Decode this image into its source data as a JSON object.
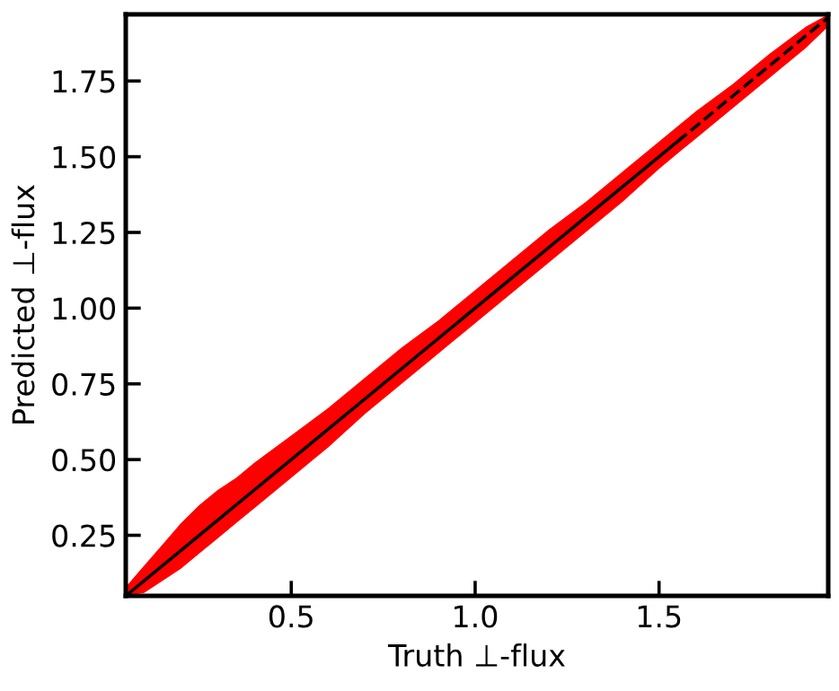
{
  "chart_data": {
    "type": "line",
    "xlabel": "Truth ⊥-flux",
    "ylabel": "Predicted ⊥-flux",
    "xlim": [
      0.05,
      1.96
    ],
    "ylim": [
      0.05,
      1.97
    ],
    "xticks": [
      0.5,
      {
        "value": 1.0,
        "label": "1.0"
      },
      1.5
    ],
    "yticks": [
      0.25,
      {
        "value": 0.5,
        "label": "0.50"
      },
      0.75,
      {
        "value": 1.0,
        "label": "1.00"
      },
      1.25,
      {
        "value": 1.5,
        "label": "1.50"
      },
      1.75
    ],
    "series": [
      {
        "color": "#ff0000",
        "x": [
          0.05,
          0.1,
          0.15,
          0.2,
          0.25,
          0.3,
          0.35,
          0.4,
          0.5,
          0.6,
          0.7,
          0.8,
          0.9,
          1.0,
          1.1,
          1.2,
          1.3,
          1.4,
          1.5,
          1.6,
          1.7,
          1.8,
          1.9,
          1.96
        ],
        "values": [
          null,
          null,
          null,
          null,
          null,
          null,
          null,
          null,
          null,
          null,
          null,
          null,
          null,
          null,
          null,
          null,
          null,
          null,
          null,
          null,
          null,
          null,
          null,
          null
        ],
        "upper": [
          0.08,
          0.15,
          0.22,
          0.29,
          0.35,
          0.4,
          0.44,
          0.49,
          0.58,
          0.67,
          0.77,
          0.87,
          0.96,
          1.06,
          1.16,
          1.26,
          1.35,
          1.45,
          1.55,
          1.65,
          1.74,
          1.84,
          1.93,
          1.97
        ],
        "lower": [
          0.05,
          0.06,
          0.1,
          0.14,
          0.19,
          0.24,
          0.29,
          0.34,
          0.44,
          0.54,
          0.65,
          0.75,
          0.85,
          0.95,
          1.05,
          1.15,
          1.25,
          1.35,
          1.46,
          1.56,
          1.66,
          1.76,
          1.86,
          1.93
        ]
      },
      {
        "color": "#000000",
        "line_style": "solid",
        "x": [
          0.05,
          1.55
        ],
        "values": [
          0.05,
          1.55
        ]
      },
      {
        "color": "#000000",
        "line_style": "dashed",
        "x": [
          1.55,
          1.96
        ],
        "values": [
          1.55,
          1.96
        ]
      }
    ]
  }
}
